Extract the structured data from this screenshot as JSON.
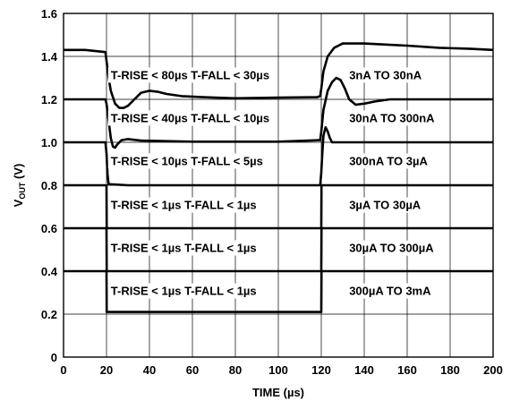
{
  "chart_data": {
    "type": "line",
    "xlabel": "TIME (µs)",
    "ylabel_main": "V",
    "ylabel_sub": "OUT",
    "ylabel_unit": " (V)",
    "xlim": [
      0,
      200
    ],
    "ylim": [
      0,
      1.6
    ],
    "x_ticks": [
      "0",
      "20",
      "40",
      "60",
      "80",
      "100",
      "120",
      "140",
      "160",
      "180",
      "200"
    ],
    "y_ticks": [
      "0",
      "0.2",
      "0.4",
      "0.6",
      "0.8",
      "1.0",
      "1.2",
      "1.4",
      "1.6"
    ],
    "grid": true,
    "annotations": [
      {
        "text": "T-RISE < 80µs T-FALL < 30µs",
        "x": 22,
        "y": 1.315
      },
      {
        "text": "3nA TO 30nA",
        "x": 133,
        "y": 1.315
      },
      {
        "text": "T-RISE < 40µs T-FALL < 10µs",
        "x": 22,
        "y": 1.115
      },
      {
        "text": "30nA TO 300nA",
        "x": 133,
        "y": 1.115
      },
      {
        "text": "T-RISE < 10µs T-FALL < 5µs",
        "x": 22,
        "y": 0.915
      },
      {
        "text": "300nA TO 3µA",
        "x": 133,
        "y": 0.915
      },
      {
        "text": "T-RISE < 1µs T-FALL < 1µs",
        "x": 22,
        "y": 0.71
      },
      {
        "text": "3µA TO 30µA",
        "x": 133,
        "y": 0.71
      },
      {
        "text": "T-RISE < 1µs T-FALL < 1µs",
        "x": 22,
        "y": 0.51
      },
      {
        "text": "30µA TO 300µA",
        "x": 133,
        "y": 0.51
      },
      {
        "text": "T-RISE < 1µs T-FALL < 1µs",
        "x": 22,
        "y": 0.31
      },
      {
        "text": "300µA TO 3mA",
        "x": 133,
        "y": 0.31
      }
    ],
    "series": [
      {
        "points": [
          [
            0,
            1.43
          ],
          [
            10,
            1.43
          ],
          [
            19.5,
            1.42
          ],
          [
            20,
            1.38
          ],
          [
            21,
            1.3
          ],
          [
            22,
            1.24
          ],
          [
            24,
            1.18
          ],
          [
            26,
            1.16
          ],
          [
            28,
            1.16
          ],
          [
            30,
            1.17
          ],
          [
            33,
            1.2
          ],
          [
            36,
            1.23
          ],
          [
            40,
            1.24
          ],
          [
            44,
            1.235
          ],
          [
            48,
            1.225
          ],
          [
            55,
            1.215
          ],
          [
            65,
            1.21
          ],
          [
            80,
            1.205
          ],
          [
            100,
            1.208
          ],
          [
            118,
            1.21
          ],
          [
            119.5,
            1.215
          ],
          [
            120,
            1.25
          ],
          [
            121,
            1.33
          ],
          [
            123,
            1.4
          ],
          [
            126,
            1.44
          ],
          [
            130,
            1.46
          ],
          [
            140,
            1.46
          ],
          [
            150,
            1.455
          ],
          [
            160,
            1.45
          ],
          [
            175,
            1.44
          ],
          [
            190,
            1.435
          ],
          [
            200,
            1.43
          ]
        ]
      },
      {
        "points": [
          [
            0,
            1.2
          ],
          [
            19.5,
            1.2
          ],
          [
            20,
            1.18
          ],
          [
            21,
            1.1
          ],
          [
            22,
            1.02
          ],
          [
            23,
            0.98
          ],
          [
            24,
            0.975
          ],
          [
            25,
            0.99
          ],
          [
            27,
            1.01
          ],
          [
            30,
            1.015
          ],
          [
            36,
            1.008
          ],
          [
            60,
            1.003
          ],
          [
            100,
            1.003
          ],
          [
            119.5,
            1.01
          ],
          [
            120,
            1.05
          ],
          [
            121,
            1.15
          ],
          [
            123,
            1.24
          ],
          [
            125,
            1.28
          ],
          [
            127,
            1.3
          ],
          [
            129,
            1.29
          ],
          [
            131,
            1.25
          ],
          [
            133,
            1.2
          ],
          [
            136,
            1.175
          ],
          [
            140,
            1.18
          ],
          [
            145,
            1.19
          ],
          [
            152,
            1.2
          ],
          [
            160,
            1.2
          ],
          [
            200,
            1.2
          ]
        ]
      },
      {
        "points": [
          [
            0,
            1.0
          ],
          [
            19.5,
            1.0
          ],
          [
            20,
            0.95
          ],
          [
            20.5,
            0.85
          ],
          [
            21,
            0.805
          ],
          [
            30,
            0.8
          ],
          [
            119.5,
            0.8
          ],
          [
            120,
            0.86
          ],
          [
            120.5,
            0.95
          ],
          [
            121,
            1.03
          ],
          [
            122,
            1.07
          ],
          [
            123,
            1.05
          ],
          [
            124,
            1.02
          ],
          [
            125,
            1.0
          ],
          [
            130,
            1.0
          ],
          [
            200,
            1.0
          ]
        ]
      },
      {
        "points": [
          [
            0,
            0.8
          ],
          [
            20,
            0.8
          ],
          [
            20.1,
            0.6
          ],
          [
            120,
            0.6
          ],
          [
            120.1,
            0.8
          ],
          [
            200,
            0.8
          ]
        ]
      },
      {
        "points": [
          [
            0,
            0.6
          ],
          [
            20,
            0.6
          ],
          [
            20.1,
            0.4
          ],
          [
            120,
            0.4
          ],
          [
            120.1,
            0.6
          ],
          [
            200,
            0.6
          ]
        ]
      },
      {
        "points": [
          [
            0,
            0.4
          ],
          [
            20,
            0.4
          ],
          [
            20.1,
            0.21
          ],
          [
            120,
            0.21
          ],
          [
            120.1,
            0.4
          ],
          [
            200,
            0.4
          ]
        ]
      }
    ]
  }
}
